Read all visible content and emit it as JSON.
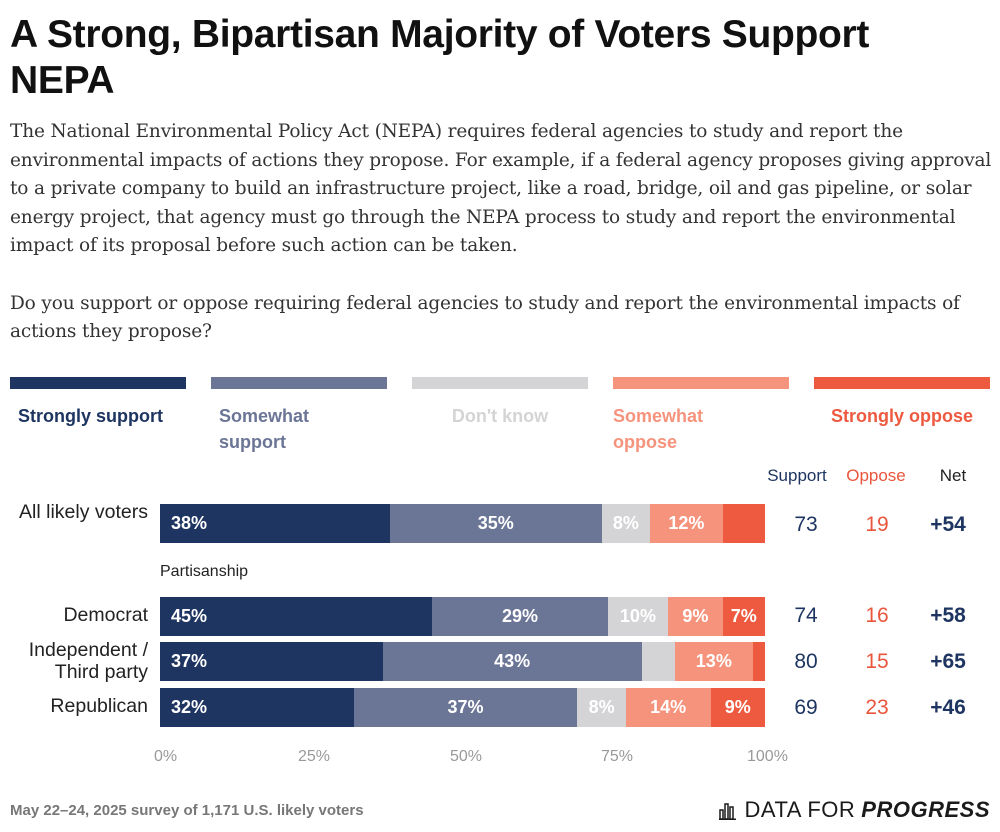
{
  "header": {
    "title": "A Strong, Bipartisan Majority of Voters Support NEPA",
    "intro": "The National Environmental Policy Act (NEPA) requires federal agencies to study and report the environmental impacts of actions they propose. For example, if a federal agency proposes giving approval to a private company to build an infrastructure project, like a road, bridge, oil and gas pipeline, or solar energy project, that agency must go through the NEPA process to study and report the environmental impact of its proposal before such action can be taken.",
    "question": "Do you support or oppose requiring federal agencies to study and report the environmental impacts of actions they propose?"
  },
  "colors": {
    "strongly_support": "#1e3561",
    "somewhat_support": "#6b7596",
    "dont_know": "#d4d4d6",
    "somewhat_oppose": "#f5937c",
    "strongly_oppose": "#ed5a3f",
    "support_text": "#1e3561",
    "oppose_text": "#e8563c"
  },
  "columns": {
    "support": "Support",
    "oppose": "Oppose",
    "net": "Net"
  },
  "section_label": "Partisanship",
  "footer": {
    "note": "May 22–24, 2025 survey of 1,171 U.S. likely voters",
    "brand_data": "DATA FOR",
    "brand_progress": "PROGRESS",
    "brand_icon": "bar-chart-logo-icon"
  },
  "chart_data": {
    "type": "bar",
    "orientation": "horizontal",
    "stacked": true,
    "title": "A Strong, Bipartisan Majority of Voters Support NEPA",
    "xlim": [
      0,
      100
    ],
    "x_ticks": [
      "0%",
      "25%",
      "50%",
      "75%",
      "100%"
    ],
    "legend": {
      "placement": "top",
      "entries": [
        "Strongly support",
        "Somewhat support",
        "Don't know",
        "Somewhat oppose",
        "Strongly oppose"
      ]
    },
    "categories": [
      "All likely voters",
      "Democrat",
      "Independent / Third party",
      "Republican"
    ],
    "series": [
      {
        "name": "Strongly support",
        "values": [
          38,
          45,
          37,
          32
        ],
        "labels": [
          "38%",
          "45%",
          "37%",
          "32%"
        ]
      },
      {
        "name": "Somewhat support",
        "values": [
          35,
          29,
          43,
          37
        ],
        "labels": [
          "35%",
          "29%",
          "43%",
          "37%"
        ]
      },
      {
        "name": "Don't know",
        "values": [
          8,
          10,
          5.5,
          8
        ],
        "labels": [
          "8%",
          "10%",
          "",
          "8%"
        ]
      },
      {
        "name": "Somewhat oppose",
        "values": [
          12,
          9,
          13,
          14
        ],
        "labels": [
          "12%",
          "9%",
          "13%",
          "14%"
        ]
      },
      {
        "name": "Strongly oppose",
        "values": [
          7,
          7,
          2,
          9
        ],
        "labels": [
          "",
          "7%",
          "",
          "9%"
        ]
      }
    ],
    "summary": {
      "support": [
        "73",
        "74",
        "80",
        "69"
      ],
      "oppose": [
        "19",
        "16",
        "15",
        "23"
      ],
      "net": [
        "+54",
        "+58",
        "+65",
        "+46"
      ]
    }
  }
}
